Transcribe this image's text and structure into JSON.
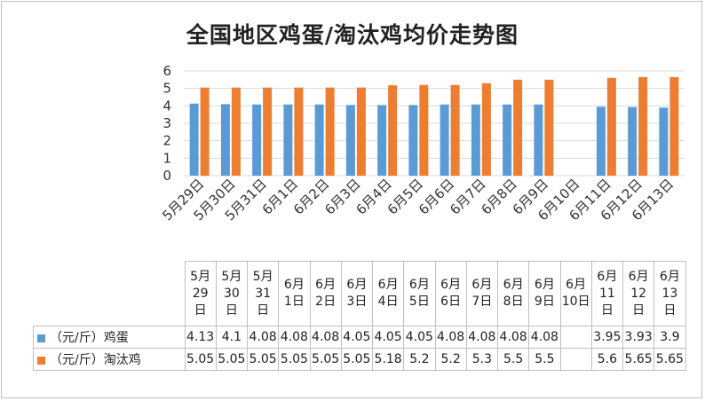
{
  "chart_data": {
    "type": "bar",
    "title": "全国地区鸡蛋/淘汰鸡均价走势图",
    "categories": [
      "5月29日",
      "5月30日",
      "5月31日",
      "6月1日",
      "6月2日",
      "6月3日",
      "6月4日",
      "6月5日",
      "6月6日",
      "6月7日",
      "6月8日",
      "6月9日",
      "6月10日",
      "6月11日",
      "6月12日",
      "6月13日"
    ],
    "table_headers": [
      [
        "5月",
        "29",
        "日"
      ],
      [
        "5月",
        "30",
        "日"
      ],
      [
        "5月",
        "31",
        "日"
      ],
      [
        "6月",
        "1日"
      ],
      [
        "6月",
        "2日"
      ],
      [
        "6月",
        "3日"
      ],
      [
        "6月",
        "4日"
      ],
      [
        "6月",
        "5日"
      ],
      [
        "6月",
        "6日"
      ],
      [
        "6月",
        "7日"
      ],
      [
        "6月",
        "8日"
      ],
      [
        "6月",
        "9日"
      ],
      [
        "6月",
        "10日"
      ],
      [
        "6月",
        "11",
        "日"
      ],
      [
        "6月",
        "12",
        "日"
      ],
      [
        "6月",
        "13",
        "日"
      ]
    ],
    "series": [
      {
        "name": "（元/斤）鸡蛋",
        "color": "#5b9bd5",
        "values": [
          4.13,
          4.1,
          4.08,
          4.08,
          4.08,
          4.05,
          4.05,
          4.05,
          4.08,
          4.08,
          4.08,
          4.08,
          null,
          3.95,
          3.93,
          3.9
        ]
      },
      {
        "name": "（元/斤）淘汰鸡",
        "color": "#ed7d31",
        "values": [
          5.05,
          5.05,
          5.05,
          5.05,
          5.05,
          5.05,
          5.18,
          5.2,
          5.2,
          5.3,
          5.5,
          5.5,
          null,
          5.6,
          5.65,
          5.65
        ]
      }
    ],
    "ylim": [
      0,
      6
    ],
    "yticks": [
      0,
      1,
      2,
      3,
      4,
      5,
      6
    ],
    "xlabel": "",
    "ylabel": "",
    "grid": true,
    "legend": "data-table"
  }
}
